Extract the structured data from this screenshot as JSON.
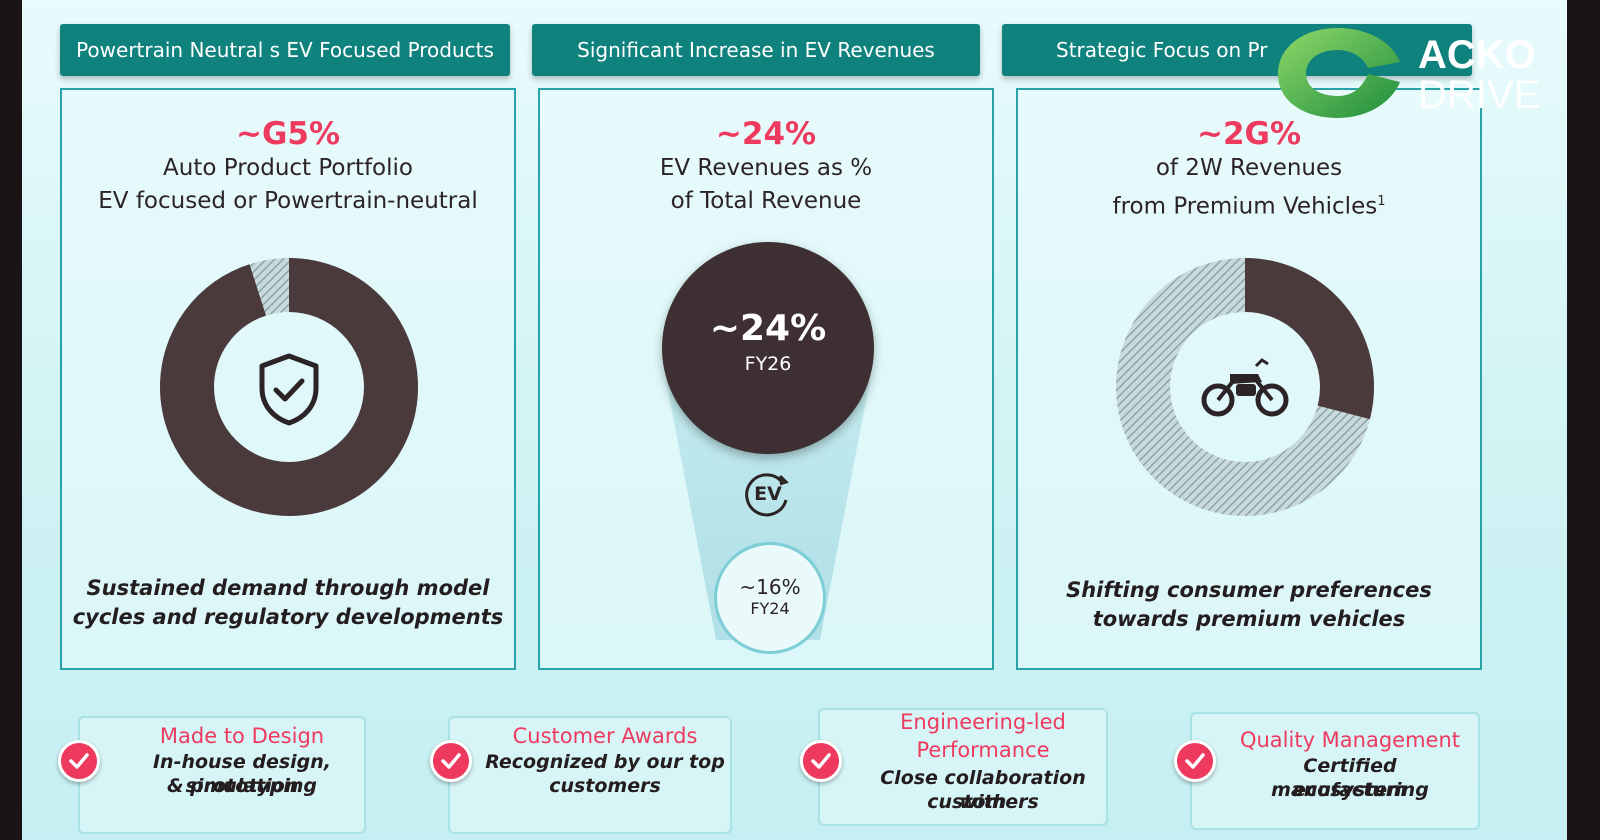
{
  "headers": [
    "Powertrain Neutral s  EV Focused Products",
    "Significant Increase in EV Revenues",
    "Strategic Focus on Pr"
  ],
  "panels": [
    {
      "pct": "~G5%",
      "line1": "Auto Product Portfolio",
      "line2": "EV focused or Powertrain-neutral",
      "icon": "shield-check-icon",
      "caption1": "Sustained demand through model",
      "caption2": "cycles and regulatory developments",
      "donut_share": 0.95
    },
    {
      "pct": "~24%",
      "line1": "EV Revenues as %",
      "line2": "of Total Revenue",
      "big_value": "~24%",
      "big_label": "FY26",
      "ev_badge": "EV",
      "small_value": "~16%",
      "small_label": "FY24"
    },
    {
      "pct": "~2G%",
      "line1": "of 2W Revenues",
      "line2": "from Premium Vehicles",
      "line2_sup": "1",
      "icon": "motorcycle-icon",
      "caption1": "Shifting consumer preferences",
      "caption2": "towards premium vehicles",
      "donut_share": 0.29
    }
  ],
  "features": [
    {
      "title1": "Made to Design",
      "title2": "",
      "desc1": "In-house design, simulation",
      "desc2": "& prototyping"
    },
    {
      "title1": "Customer Awards",
      "title2": "",
      "desc1": "Recognized by our top",
      "desc2": "customers"
    },
    {
      "title1": "Engineering-led",
      "title2": "Performance",
      "desc1": "Close collaboration with",
      "desc2": "customers"
    },
    {
      "title1": "Quality Management",
      "title2": "",
      "desc1": "Certified manufacturing",
      "desc2": "ecosystem"
    }
  ],
  "watermark": {
    "line1": "ACKO",
    "line2": "DRIVE"
  },
  "colors": {
    "accent": "#ee3a5f",
    "teal": "#0f827d",
    "donut_dark": "#4a3a3c",
    "donut_light": "#a9bfc2"
  }
}
